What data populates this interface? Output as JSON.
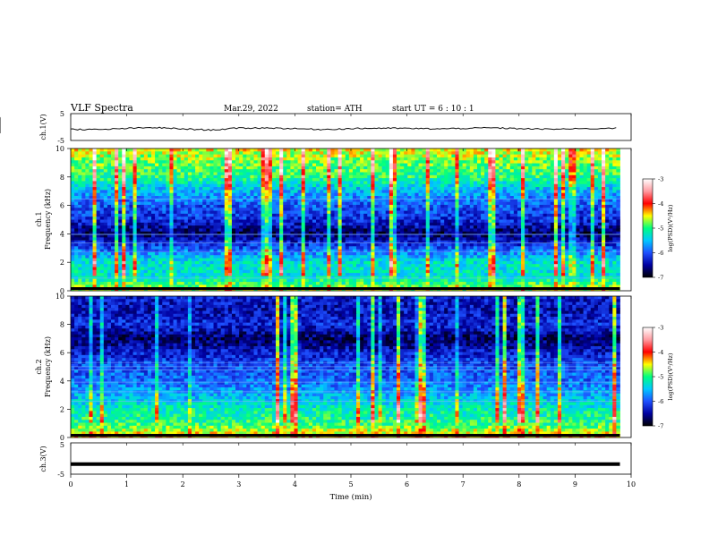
{
  "header": {
    "title": "VLF  Spectra",
    "date": "Mar.29, 2022",
    "station": "station= ATH",
    "start_ut": "start  UT  =   6  : 10 : 1"
  },
  "colormap": {
    "stops": [
      "#000000",
      "#0000a0",
      "#1e50ff",
      "#00c8ff",
      "#00ff80",
      "#ffff00",
      "#ff0000",
      "#ff9aa0",
      "#ffffff"
    ]
  },
  "chart_data": [
    {
      "type": "line",
      "panel": "ch1-waveform",
      "ylabel": "ch.1(V)",
      "ylim": [
        -5,
        5
      ],
      "yticklabels": [
        "5",
        "-5"
      ],
      "xlim": [
        0,
        10
      ],
      "xlabel": "",
      "series": [
        {
          "values": [
            -0.8,
            -1.0,
            -0.5,
            -0.2,
            -0.7,
            -1.1,
            -0.4,
            -0.3,
            -0.6,
            -0.9,
            -0.6,
            -0.4,
            -0.5,
            -0.7,
            -0.5,
            -0.3,
            -0.6,
            -0.8,
            -0.7,
            -0.4
          ]
        }
      ],
      "x_samples_min": [
        0,
        0.5,
        1,
        1.5,
        2,
        2.5,
        3,
        3.5,
        4,
        4.5,
        5,
        5.5,
        6,
        6.5,
        7,
        7.5,
        8,
        8.5,
        9,
        9.8
      ]
    },
    {
      "type": "heatmap",
      "panel": "ch1-spectrogram",
      "ylabel": "ch.1\nFrequency  (kHz)",
      "ylim": [
        0,
        10
      ],
      "yticklabels": [
        "0",
        "2",
        "4",
        "6",
        "8",
        "10"
      ],
      "xlim": [
        0,
        10
      ],
      "data_xmax": 9.8,
      "color_scale_label": "log(PSD)(V²/Hz)",
      "color_range": [
        -7,
        -3
      ],
      "colorbar_ticks": [
        "-3",
        "-4",
        "-5",
        "-6",
        "-7"
      ],
      "frequency_profile_khz": [
        0,
        1,
        2,
        3,
        4,
        5,
        6,
        7,
        8,
        9,
        10
      ],
      "frequency_profile_logpsd": [
        -4.6,
        -5.3,
        -5.3,
        -6.0,
        -6.7,
        -6.2,
        -6.0,
        -5.6,
        -5.0,
        -4.8,
        -4.5
      ]
    },
    {
      "type": "heatmap",
      "panel": "ch2-spectrogram",
      "ylabel": "ch.2\nFrequency  (kHz)",
      "ylim": [
        0,
        10
      ],
      "yticklabels": [
        "0",
        "2",
        "4",
        "6",
        "8",
        "10"
      ],
      "xlim": [
        0,
        10
      ],
      "data_xmax": 9.8,
      "color_scale_label": "log(PSD)(V²/Hz)",
      "color_range": [
        -7,
        -3
      ],
      "colorbar_ticks": [
        "-3",
        "-4",
        "-5",
        "-6",
        "-7"
      ],
      "frequency_profile_khz": [
        0,
        1,
        2,
        3,
        4,
        5,
        6,
        7,
        8,
        9,
        10
      ],
      "frequency_profile_logpsd": [
        -4.3,
        -5.0,
        -5.2,
        -5.6,
        -5.9,
        -6.0,
        -6.3,
        -6.7,
        -6.2,
        -6.4,
        -6.3
      ]
    },
    {
      "type": "line",
      "panel": "ch3-waveform",
      "ylabel": "ch.3(V)",
      "ylim": [
        -5,
        5
      ],
      "yticklabels": [
        "5",
        "-5"
      ],
      "xlim": [
        0,
        10
      ],
      "xlabel": "Time  (min)",
      "xticklabels": [
        "0",
        "1",
        "2",
        "3",
        "4",
        "5",
        "6",
        "7",
        "8",
        "9",
        "10"
      ],
      "series": [
        {
          "values": [
            -1.8,
            -1.8
          ]
        }
      ],
      "x_samples_min": [
        0,
        9.8
      ]
    }
  ]
}
